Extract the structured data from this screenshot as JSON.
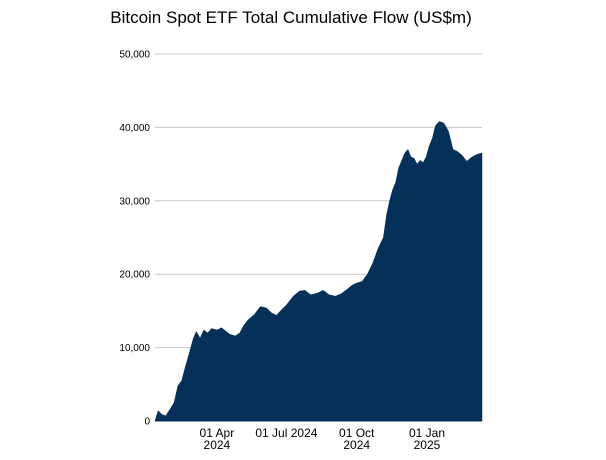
{
  "chart_data": {
    "type": "area",
    "title": "Bitcoin Spot ETF Total Cumulative Flow (US$m)",
    "xlabel": "",
    "ylabel": "",
    "ylim": [
      0,
      50000
    ],
    "y_ticks": [
      "0",
      "10,000",
      "20,000",
      "30,000",
      "40,000",
      "50,000"
    ],
    "x_ticks": [
      {
        "date": "2024-04-01",
        "line1": "01 Apr",
        "line2": "2024"
      },
      {
        "date": "2024-07-01",
        "line1": "01 Jul 2024",
        "line2": ""
      },
      {
        "date": "2024-10-01",
        "line1": "01 Oct",
        "line2": "2024"
      },
      {
        "date": "2025-01-01",
        "line1": "01 Jan",
        "line2": "2025"
      }
    ],
    "xlim": [
      "2024-01-11",
      "2025-03-14"
    ],
    "grid": true,
    "legend": "none",
    "series": [
      {
        "color": "#04305a",
        "x": [
          "2024-01-11",
          "2024-01-15",
          "2024-01-20",
          "2024-01-25",
          "2024-01-30",
          "2024-02-05",
          "2024-02-10",
          "2024-02-15",
          "2024-02-20",
          "2024-02-25",
          "2024-03-01",
          "2024-03-05",
          "2024-03-10",
          "2024-03-15",
          "2024-03-20",
          "2024-03-25",
          "2024-04-01",
          "2024-04-07",
          "2024-04-12",
          "2024-04-18",
          "2024-04-25",
          "2024-05-01",
          "2024-05-06",
          "2024-05-12",
          "2024-05-20",
          "2024-05-28",
          "2024-06-05",
          "2024-06-12",
          "2024-06-18",
          "2024-06-25",
          "2024-07-01",
          "2024-07-10",
          "2024-07-18",
          "2024-07-25",
          "2024-08-02",
          "2024-08-10",
          "2024-08-18",
          "2024-08-26",
          "2024-09-03",
          "2024-09-10",
          "2024-09-18",
          "2024-09-25",
          "2024-10-01",
          "2024-10-08",
          "2024-10-15",
          "2024-10-22",
          "2024-10-29",
          "2024-11-05",
          "2024-11-09",
          "2024-11-13",
          "2024-11-17",
          "2024-11-21",
          "2024-11-25",
          "2024-11-29",
          "2024-12-03",
          "2024-12-07",
          "2024-12-11",
          "2024-12-15",
          "2024-12-19",
          "2024-12-23",
          "2024-12-27",
          "2024-12-31",
          "2025-01-04",
          "2025-01-08",
          "2025-01-12",
          "2025-01-17",
          "2025-01-23",
          "2025-01-29",
          "2025-02-04",
          "2025-02-10",
          "2025-02-16",
          "2025-02-22",
          "2025-02-28",
          "2025-03-05",
          "2025-03-10",
          "2025-03-14"
        ],
        "y": [
          0,
          1400,
          900,
          700,
          1500,
          2500,
          4800,
          5500,
          7500,
          9300,
          11200,
          12200,
          11300,
          12400,
          12000,
          12600,
          12400,
          12700,
          12300,
          11800,
          11600,
          12000,
          13000,
          13800,
          14500,
          15600,
          15400,
          14700,
          14400,
          15200,
          15800,
          17000,
          17700,
          17800,
          17200,
          17400,
          17800,
          17200,
          17000,
          17300,
          17900,
          18500,
          18800,
          19000,
          20000,
          21500,
          23500,
          25000,
          28000,
          30000,
          31500,
          32500,
          34500,
          35500,
          36500,
          37000,
          36000,
          35800,
          35000,
          35500,
          35200,
          36000,
          37500,
          38500,
          40200,
          40800,
          40600,
          39500,
          37000,
          36700,
          36200,
          35400,
          35900,
          36200,
          36400,
          36500
        ]
      }
    ]
  }
}
